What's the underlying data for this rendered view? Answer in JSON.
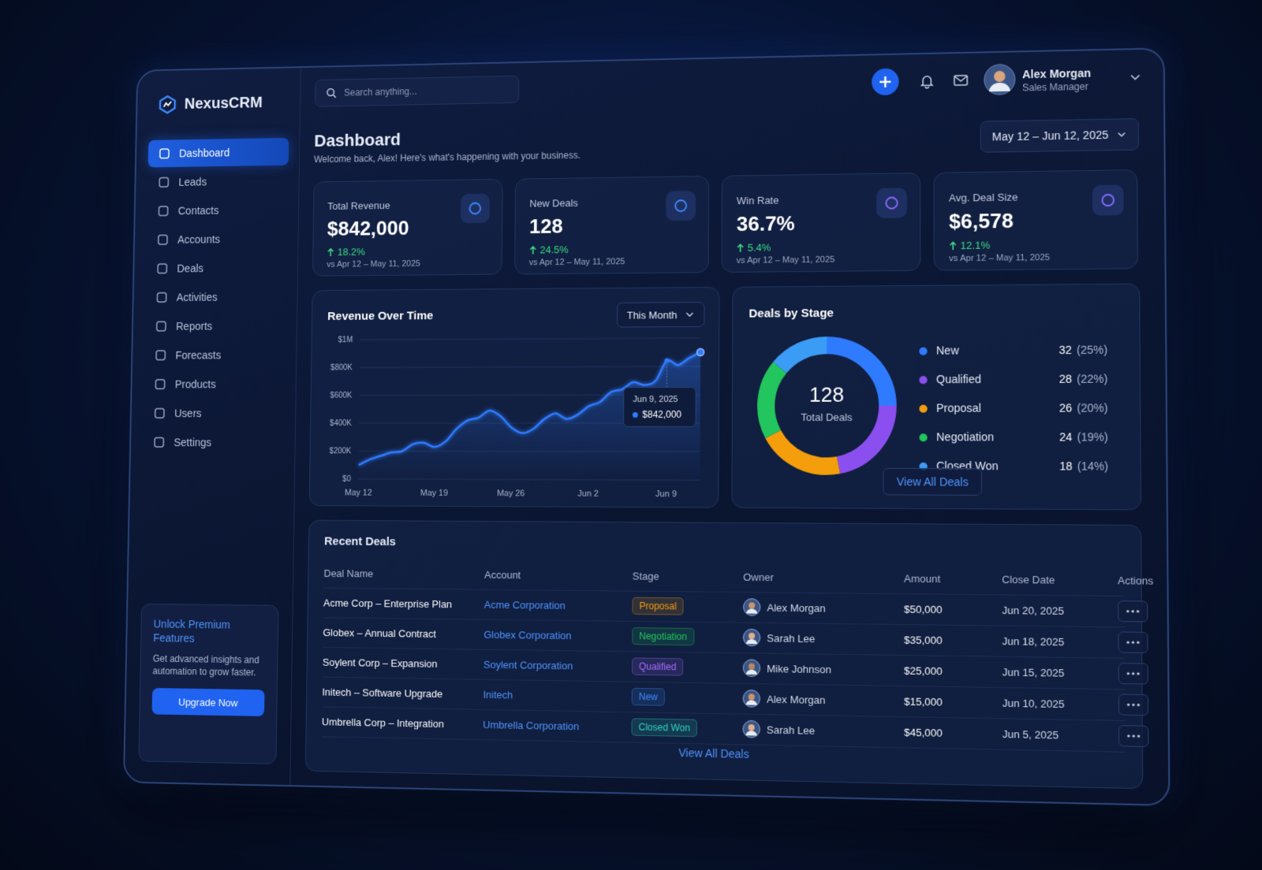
{
  "sidebar": {
    "brand": "NexusCRM",
    "nav": [
      {
        "label": "Dashboard",
        "active": true
      },
      {
        "label": "Leads"
      },
      {
        "label": "Contacts"
      },
      {
        "label": "Accounts"
      },
      {
        "label": "Deals"
      },
      {
        "label": "Activities"
      },
      {
        "label": "Reports"
      },
      {
        "label": "Forecasts"
      },
      {
        "label": "Products"
      },
      {
        "label": "Users"
      },
      {
        "label": "Settings"
      }
    ],
    "promo": {
      "title": "Unlock Premium Features",
      "text": "Get advanced insights and automation to grow faster.",
      "button": "Upgrade Now"
    }
  },
  "header": {
    "search_placeholder": "Search anything...",
    "user_name": "Alex Morgan",
    "user_role": "Sales Manager"
  },
  "page": {
    "title": "Dashboard",
    "subtitle": "Welcome back, Alex! Here's what's happening with your business.",
    "date_range": "May 12 – Jun 12, 2025"
  },
  "kpis": [
    {
      "label": "Total Revenue",
      "value": "$842,000",
      "change": "18.2%",
      "period": "vs Apr 12 – May 11, 2025"
    },
    {
      "label": "New Deals",
      "value": "128",
      "change": "24.5%",
      "period": "vs Apr 12 – May 11, 2025"
    },
    {
      "label": "Win Rate",
      "value": "36.7%",
      "change": "5.4%",
      "period": "vs Apr 12 – May 11, 2025"
    },
    {
      "label": "Avg. Deal Size",
      "value": "$6,578",
      "change": "12.1%",
      "period": "vs Apr 12 – May 11, 2025"
    }
  ],
  "chart_data": [
    {
      "type": "line",
      "title": "Revenue Over Time",
      "filter": "This Month",
      "categories": [
        "May 12",
        null,
        null,
        null,
        null,
        null,
        null,
        "May 19",
        null,
        null,
        null,
        null,
        null,
        null,
        "May 26",
        null,
        null,
        null,
        null,
        null,
        null,
        "Jun 2",
        null,
        null,
        null,
        null,
        null,
        null,
        "Jun 9",
        null,
        null,
        null
      ],
      "values": [
        100000,
        140000,
        165000,
        190000,
        200000,
        250000,
        260000,
        230000,
        270000,
        360000,
        420000,
        440000,
        490000,
        450000,
        370000,
        330000,
        360000,
        430000,
        470000,
        430000,
        460000,
        520000,
        550000,
        620000,
        640000,
        690000,
        670000,
        700000,
        842000,
        810000,
        860000,
        900000
      ],
      "color": "#2f7bff",
      "ylim": [
        0,
        1000000
      ],
      "yticks": [
        {
          "value": 0,
          "label": "$0"
        },
        {
          "value": 200000,
          "label": "$200K"
        },
        {
          "value": 400000,
          "label": "$400K"
        },
        {
          "value": 600000,
          "label": "$600K"
        },
        {
          "value": 800000,
          "label": "$800K"
        },
        {
          "value": 1000000,
          "label": "$1M"
        }
      ],
      "grid": true,
      "annotations": [
        {
          "label": "Jun 9, 2025",
          "value": 842000,
          "value_label": "$842,000"
        }
      ]
    },
    {
      "type": "pie",
      "donut": true,
      "title": "Deals by Stage",
      "categories": [
        "New",
        "Qualified",
        "Proposal",
        "Negotiation",
        "Closed Won"
      ],
      "values": [
        32,
        28,
        26,
        24,
        18
      ],
      "share_labels": [
        "(25%)",
        "(22%)",
        "(20%)",
        "(19%)",
        "(14%)"
      ],
      "colors": [
        "#2f7bff",
        "#8b4ff0",
        "#f59e0b",
        "#22c55e",
        "#3b9cf5"
      ],
      "total": 128,
      "total_label": "Total Deals",
      "button": "View All Deals"
    }
  ],
  "recent_deals": {
    "title": "Recent Deals",
    "columns": [
      "Deal Name",
      "Account",
      "Stage",
      "Owner",
      "Amount",
      "Close Date",
      "Actions"
    ],
    "rows": [
      {
        "deal": "Acme Corp – Enterprise Plan",
        "account": "Acme Corporation",
        "stage": {
          "label": "Proposal",
          "color": "#f59e0b"
        },
        "owner": "Alex Morgan",
        "amount": "$50,000",
        "close_date": "Jun 20, 2025"
      },
      {
        "deal": "Globex – Annual Contract",
        "account": "Globex Corporation",
        "stage": {
          "label": "Negotiation",
          "color": "#22c55e"
        },
        "owner": "Sarah Lee",
        "amount": "$35,000",
        "close_date": "Jun 18, 2025"
      },
      {
        "deal": "Soylent Corp – Expansion",
        "account": "Soylent Corporation",
        "stage": {
          "label": "Qualified",
          "color": "#a86bff"
        },
        "owner": "Mike Johnson",
        "amount": "$25,000",
        "close_date": "Jun 15, 2025"
      },
      {
        "deal": "Initech – Software Upgrade",
        "account": "Initech",
        "stage": {
          "label": "New",
          "color": "#3b8cff"
        },
        "owner": "Alex Morgan",
        "amount": "$15,000",
        "close_date": "Jun 10, 2025"
      },
      {
        "deal": "Umbrella Corp – Integration",
        "account": "Umbrella Corporation",
        "stage": {
          "label": "Closed Won",
          "color": "#2dd4bf"
        },
        "owner": "Sarah Lee",
        "amount": "$45,000",
        "close_date": "Jun 5, 2025"
      }
    ],
    "footer": "View All Deals"
  }
}
